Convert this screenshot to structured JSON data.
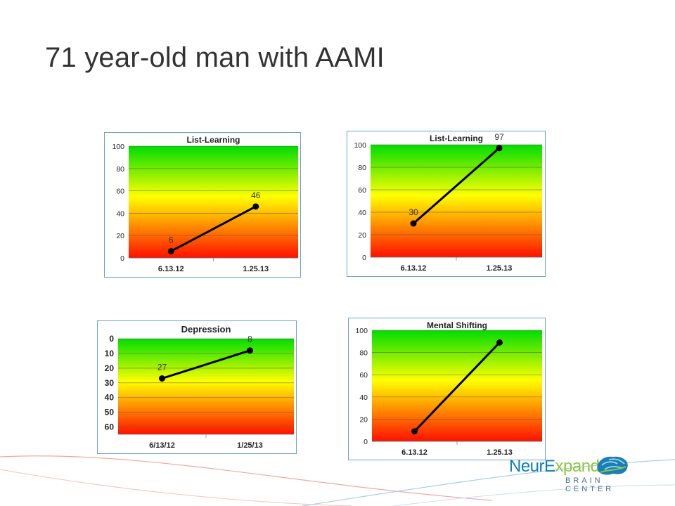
{
  "slide": {
    "title": "71 year-old man with AAMI"
  },
  "logo": {
    "word_part1": "NeurE",
    "word_part2": "xpand",
    "subtitle": "BRAIN CENTER",
    "colors": {
      "blue": "#0b7fb8",
      "green": "#8dc63f"
    }
  },
  "colors": {
    "gradient_top": "#00dd00",
    "gradient_mid": "#ffff00",
    "gradient_bottom": "#ff1000",
    "line": "#000000",
    "frame": "#6fa0c8"
  },
  "chart_data": [
    {
      "type": "line",
      "title": "List-Learning",
      "categories": [
        "6.13.12",
        "1.25.13"
      ],
      "values": [
        6,
        46
      ],
      "data_labels": [
        "6",
        "46"
      ],
      "ylim": [
        0,
        100
      ],
      "yticks": [
        "0",
        "20",
        "40",
        "60",
        "80",
        "100"
      ],
      "y_inverted": false,
      "grid": true
    },
    {
      "type": "line",
      "title": "List-Learning",
      "categories": [
        "6.13.12",
        "1.25.13"
      ],
      "values": [
        30,
        97
      ],
      "data_labels": [
        "30",
        "97"
      ],
      "ylim": [
        0,
        100
      ],
      "yticks": [
        "0",
        "20",
        "40",
        "60",
        "80",
        "100"
      ],
      "y_inverted": false,
      "grid": true
    },
    {
      "type": "line",
      "title": "Depression",
      "categories": [
        "6/13/12",
        "1/25/13"
      ],
      "values": [
        27,
        8
      ],
      "data_labels": [
        "27",
        "8"
      ],
      "ylim": [
        0,
        65
      ],
      "yticks": [
        "0",
        "10",
        "20",
        "30",
        "40",
        "50",
        "60"
      ],
      "y_inverted": true,
      "grid": true
    },
    {
      "type": "line",
      "title": "Mental Shifting",
      "categories": [
        "6.13.12",
        "1.25.13"
      ],
      "values": [
        9,
        89
      ],
      "data_labels": [
        "",
        ""
      ],
      "ylim": [
        0,
        100
      ],
      "yticks": [
        "0",
        "20",
        "40",
        "60",
        "80",
        "100"
      ],
      "y_inverted": false,
      "grid": true
    }
  ]
}
